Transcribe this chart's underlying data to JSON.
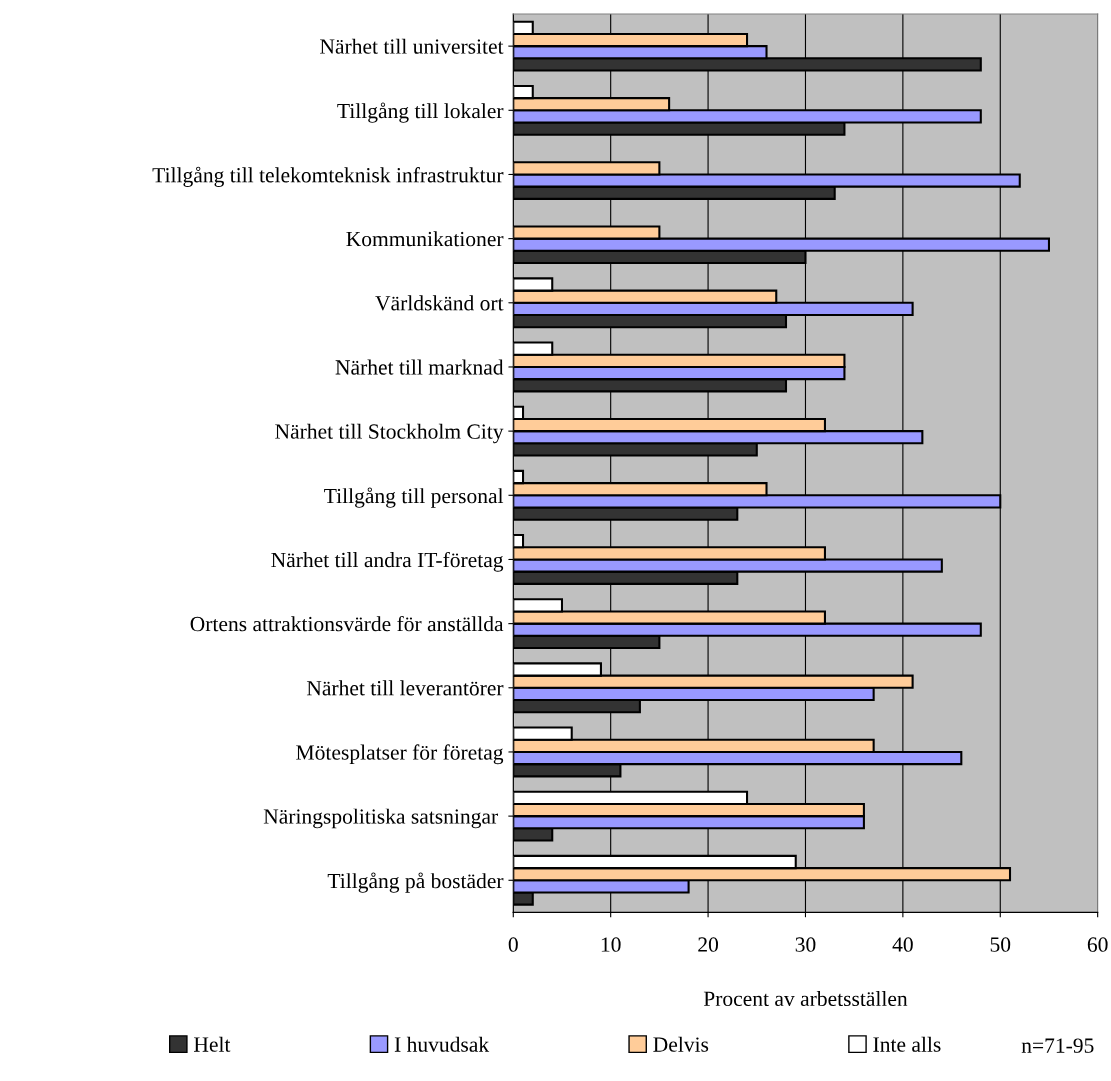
{
  "chart_data": {
    "type": "bar",
    "orientation": "horizontal",
    "xlabel": "Procent av arbetsställen",
    "categories": [
      "Närhet till universitet",
      "Tillgång till lokaler",
      "Tillgång till telekomteknisk infrastruktur",
      "Kommunikationer",
      "Världskänd ort",
      "Närhet till marknad",
      "Närhet till Stockholm City",
      "Tillgång till personal",
      "Närhet till andra IT-företag",
      "Ortens attraktionsvärde för anställda",
      "Närhet till leverantörer",
      "Mötesplatser för företag",
      "Näringspolitiska satsningar ",
      "Tillgång på bostäder"
    ],
    "series": [
      {
        "name": "Helt",
        "color": "#333333",
        "values": [
          48,
          34,
          33,
          30,
          28,
          28,
          25,
          23,
          23,
          15,
          13,
          11,
          4,
          2
        ]
      },
      {
        "name": "I huvudsak",
        "color": "#9999ff",
        "values": [
          26,
          48,
          52,
          55,
          41,
          34,
          42,
          50,
          44,
          48,
          37,
          46,
          36,
          18
        ]
      },
      {
        "name": "Delvis",
        "color": "#ffcc99",
        "values": [
          24,
          16,
          15,
          15,
          27,
          34,
          32,
          26,
          32,
          32,
          41,
          37,
          36,
          51
        ]
      },
      {
        "name": "Inte alls",
        "color": "#ffffff",
        "values": [
          2,
          2,
          null,
          null,
          4,
          4,
          1,
          1,
          1,
          5,
          9,
          6,
          24,
          29
        ]
      }
    ],
    "xlim": [
      0,
      60
    ],
    "xticks": [
      0,
      10,
      20,
      30,
      40,
      50,
      60
    ],
    "grid": "x",
    "legend": "bottom",
    "annotations": [
      "n=71-95"
    ]
  }
}
